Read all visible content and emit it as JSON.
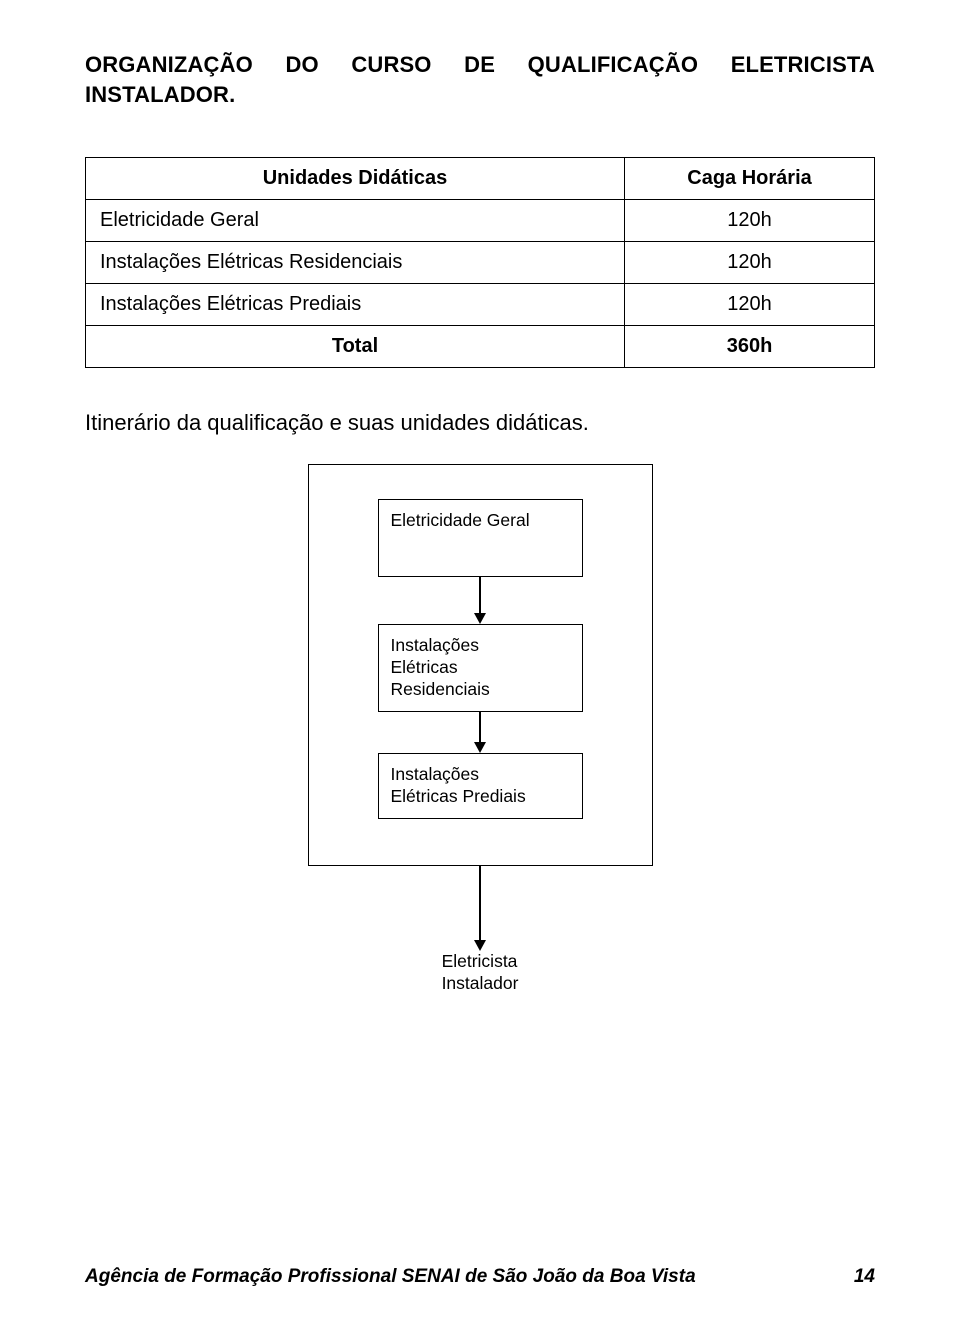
{
  "title": {
    "line1_words": [
      "ORGANIZAÇÃO",
      "DO",
      "CURSO",
      "DE",
      "QUALIFICAÇÃO",
      "ELETRICISTA"
    ],
    "line2": "INSTALADOR."
  },
  "table": {
    "header": {
      "col1": "Unidades Didáticas",
      "col2": "Caga Horária"
    },
    "rows": [
      {
        "label": "Eletricidade Geral",
        "value": "120h"
      },
      {
        "label": "Instalações Elétricas Residenciais",
        "value": "120h"
      },
      {
        "label": "Instalações Elétricas Prediais",
        "value": "120h"
      }
    ],
    "total": {
      "label": "Total",
      "value": "360h"
    }
  },
  "subtitle": "Itinerário da qualificação e suas unidades didáticas.",
  "diagram": {
    "nodes": [
      "Eletricidade Geral",
      "Instalações\nElétricas\nResidenciais",
      "Instalações\nElétricas Prediais"
    ],
    "result": "Eletricista\nInstalador",
    "arrow_heights": [
      36,
      30,
      74
    ]
  },
  "footer": {
    "text": "Agência de Formação Profissional SENAI de São João da Boa Vista",
    "page": "14"
  },
  "colors": {
    "text": "#000000",
    "background": "#ffffff",
    "border": "#000000"
  }
}
